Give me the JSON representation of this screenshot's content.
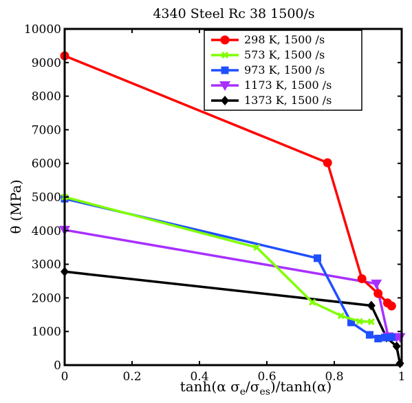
{
  "chart_data": {
    "type": "line",
    "title": "4340 Steel Rc 38 1500/s",
    "xlabel": "tanh(α σe/σes)/tanh(α)",
    "ylabel": "θ (MPa)",
    "xlim": [
      0,
      1
    ],
    "ylim": [
      0,
      10000
    ],
    "xticks": [
      "0",
      "0.2",
      "0.4",
      "0.6",
      "0.8",
      "1"
    ],
    "yticks": [
      "0",
      "1000",
      "2000",
      "3000",
      "4000",
      "5000",
      "6000",
      "7000",
      "8000",
      "9000",
      "10000"
    ],
    "grid": false,
    "legend_position": "top-right",
    "series": [
      {
        "name": "298 K, 1500 /s",
        "color": "#ff0000",
        "marker": "circle",
        "points": [
          [
            0,
            9200
          ],
          [
            0.78,
            6020
          ],
          [
            0.882,
            2570
          ],
          [
            0.93,
            2130
          ],
          [
            0.958,
            1850
          ],
          [
            0.97,
            1760
          ]
        ]
      },
      {
        "name": "573 K, 1500 /s",
        "color": "#7fff00",
        "marker": "x",
        "points": [
          [
            0,
            5000
          ],
          [
            0.57,
            3500
          ],
          [
            0.735,
            1870
          ],
          [
            0.82,
            1470
          ],
          [
            0.875,
            1300
          ],
          [
            0.91,
            1290
          ]
        ]
      },
      {
        "name": "973 K, 1500 /s",
        "color": "#1f4fff",
        "marker": "square",
        "points": [
          [
            0,
            4950
          ],
          [
            0.75,
            3180
          ],
          [
            0.85,
            1270
          ],
          [
            0.905,
            900
          ],
          [
            0.93,
            790
          ],
          [
            0.95,
            820
          ],
          [
            0.97,
            830
          ]
        ]
      },
      {
        "name": "1173 K, 1500 /s",
        "color": "#a830ff",
        "marker": "triangle-down",
        "points": [
          [
            0,
            4020
          ],
          [
            0.925,
            2420
          ],
          [
            0.96,
            850
          ],
          [
            0.985,
            830
          ],
          [
            0.995,
            830
          ]
        ]
      },
      {
        "name": "1373 K, 1500 /s",
        "color": "#000000",
        "marker": "diamond",
        "points": [
          [
            0,
            2780
          ],
          [
            0.91,
            1770
          ],
          [
            0.955,
            820
          ],
          [
            0.985,
            560
          ],
          [
            0.995,
            50
          ]
        ]
      }
    ]
  }
}
